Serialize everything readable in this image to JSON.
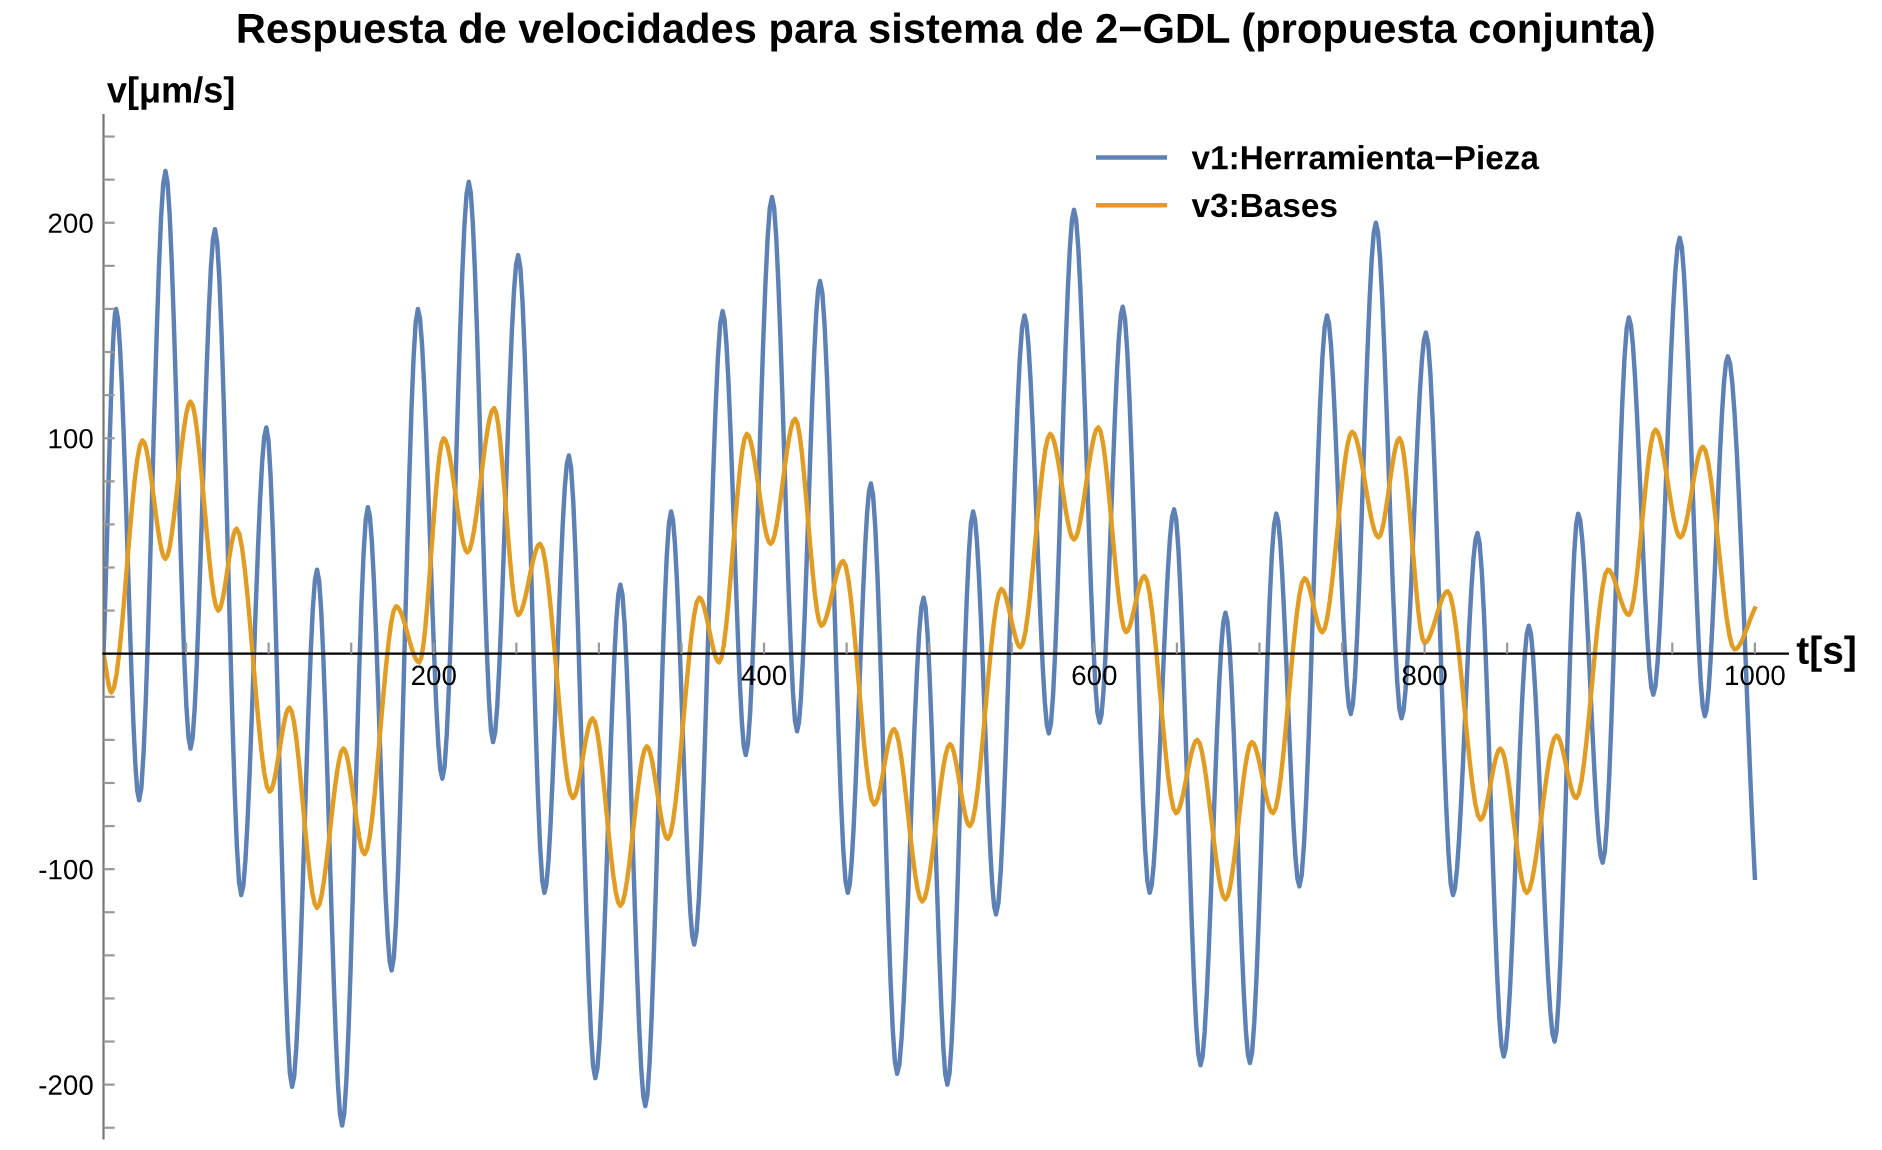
{
  "chart_data": {
    "type": "line",
    "title": "Respuesta de velocidades para sistema de 2−GDL (propuesta conjunta)",
    "xlabel": "t[s]",
    "ylabel": "v[μm/s]",
    "xlim": [
      0,
      1020
    ],
    "ylim": [
      -225,
      250
    ],
    "xticks": [
      {
        "value": 50,
        "label": null
      },
      {
        "value": 100,
        "label": null
      },
      {
        "value": 150,
        "label": null
      },
      200,
      {
        "value": 250,
        "label": null
      },
      {
        "value": 300,
        "label": null
      },
      {
        "value": 350,
        "label": null
      },
      400,
      {
        "value": 450,
        "label": null
      },
      {
        "value": 500,
        "label": null
      },
      {
        "value": 550,
        "label": null
      },
      600,
      {
        "value": 650,
        "label": null
      },
      {
        "value": 700,
        "label": null
      },
      {
        "value": 750,
        "label": null
      },
      800,
      {
        "value": 850,
        "label": null
      },
      {
        "value": 900,
        "label": null
      },
      {
        "value": 950,
        "label": null
      },
      1000
    ],
    "yticks": [
      {
        "value": -220,
        "label": null
      },
      -200,
      {
        "value": -180,
        "label": null
      },
      {
        "value": -160,
        "label": null
      },
      {
        "value": -140,
        "label": null
      },
      {
        "value": -120,
        "label": null
      },
      -100,
      {
        "value": -80,
        "label": null
      },
      {
        "value": -60,
        "label": null
      },
      {
        "value": -40,
        "label": null
      },
      {
        "value": -20,
        "label": null
      },
      {
        "value": 20,
        "label": null
      },
      {
        "value": 40,
        "label": null
      },
      {
        "value": 60,
        "label": null
      },
      {
        "value": 80,
        "label": null
      },
      100,
      {
        "value": 120,
        "label": null
      },
      {
        "value": 140,
        "label": null
      },
      {
        "value": 160,
        "label": null
      },
      {
        "value": 180,
        "label": null
      },
      200,
      {
        "value": 220,
        "label": null
      },
      {
        "value": 240,
        "label": null
      }
    ],
    "grid": false,
    "legend": "top right",
    "marker": "none",
    "line_style": "solid",
    "series": [
      {
        "name": "v1:Herramienta−Pieza",
        "color": "#5e81b5",
        "x": [
          0,
          7.6,
          21.6,
          37.5,
          52.7,
          67.5,
          83.4,
          98.6,
          114.2,
          129.3,
          144.5,
          160.1,
          174.5,
          190.4,
          205.2,
          221.2,
          235.9,
          251.1,
          267,
          281.8,
          297.8,
          313,
          328.1,
          343.7,
          357.7,
          374.9,
          388.9,
          404.8,
          420,
          433.9,
          450.7,
          464.7,
          480.6,
          496.6,
          511,
          526.6,
          540.5,
          557.7,
          572.5,
          587.7,
          603.2,
          617.2,
          633.5,
          648.3,
          664.3,
          679.4,
          694.2,
          710.2,
          724.2,
          740.9,
          755.3,
          770.5,
          786,
          800.8,
          817.2,
          832,
          847.9,
          863.1,
          878.7,
          893,
          907.8,
          923.7,
          938.5,
          954.5,
          969.7,
          983.6,
          1000
        ],
        "values": [
          0,
          160,
          -68,
          224,
          -44,
          197,
          -112,
          105,
          -201,
          39,
          -219,
          68,
          -147,
          160,
          -58,
          219,
          -41,
          185,
          -111,
          92,
          -197,
          32,
          -210,
          66,
          -135,
          159,
          -47,
          212,
          -36,
          173,
          -111,
          79,
          -195,
          26,
          -200,
          66,
          -121,
          157,
          -37,
          206,
          -32,
          161,
          -111,
          67,
          -191,
          19,
          -190,
          65,
          -108,
          157,
          -28,
          200,
          -30,
          149,
          -112,
          56,
          -187,
          13,
          -180,
          65,
          -97,
          156,
          -19,
          193,
          -29,
          138,
          -104
        ]
      },
      {
        "name": "v3:Bases",
        "color": "#e19c24",
        "x": [
          0,
          4.8,
          23.6,
          37.5,
          52.7,
          69.5,
          80.6,
          100.6,
          112.6,
          129.3,
          145.3,
          158.1,
          177.2,
          191.2,
          206,
          220.4,
          236.5,
          251.1,
          264.3,
          284.2,
          296.2,
          313,
          329,
          341.7,
          360.8,
          372.8,
          389.6,
          404,
          418.8,
          434.7,
          447.9,
          466.7,
          478.7,
          495.8,
          512.6,
          524.6,
          543.7,
          555.3,
          573.3,
          587.7,
          602.4,
          619.2,
          630.3,
          649.5,
          662.3,
          679.4,
          695.4,
          708.2,
          727.3,
          738.1,
          756.1,
          772.1,
          784.8,
          800,
          814,
          833.9,
          845.9,
          861.9,
          879.9,
          891.8,
          911,
          923.7,
          939.8,
          954.9,
          968.5,
          987.7,
          1000
        ],
        "values": [
          0,
          -18,
          99,
          44,
          117,
          20,
          58,
          -64,
          -25,
          -118,
          -44,
          -93,
          22,
          -4,
          100,
          47,
          114,
          18,
          51,
          -67,
          -30,
          -117,
          -43,
          -86,
          26,
          -4,
          102,
          51,
          109,
          13,
          43,
          -70,
          -35,
          -115,
          -42,
          -80,
          30,
          3,
          102,
          53,
          105,
          10,
          36,
          -74,
          -40,
          -114,
          -41,
          -74,
          35,
          10,
          103,
          54,
          100,
          5,
          29,
          -77,
          -44,
          -111,
          -38,
          -67,
          39,
          18,
          104,
          54,
          96,
          2,
          21
        ]
      }
    ]
  }
}
